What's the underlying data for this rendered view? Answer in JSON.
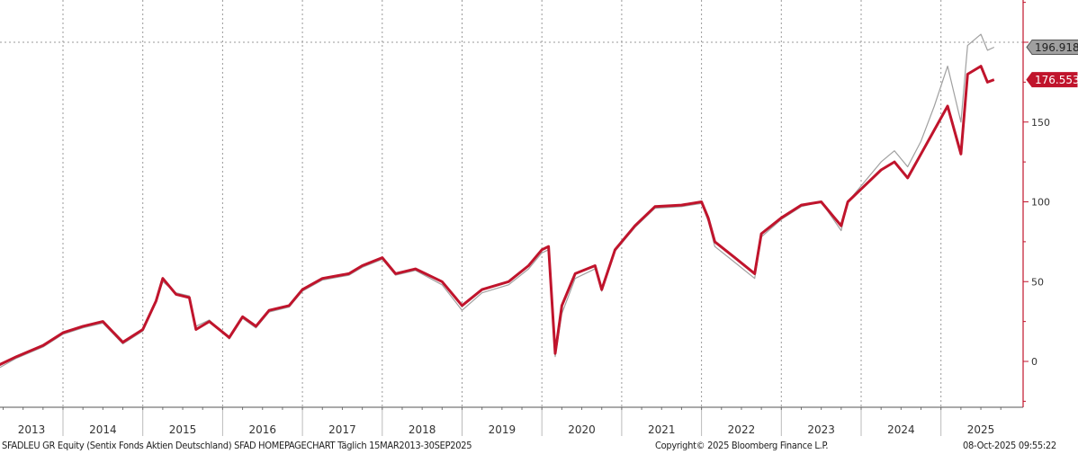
{
  "chart_data": {
    "type": "line",
    "title": "",
    "xlabel": "",
    "ylabel": "",
    "x_range": [
      "2013-03",
      "2025-12"
    ],
    "ylim": [
      -28,
      226
    ],
    "y_ticks": [
      0,
      50,
      100,
      150,
      200
    ],
    "x_tick_labels": [
      "2013",
      "2014",
      "2015",
      "2016",
      "2017",
      "2018",
      "2019",
      "2020",
      "2021",
      "2022",
      "2023",
      "2024",
      "2025"
    ],
    "grid": "vertical dotted at year boundaries, horizontal dotted at 200",
    "axis_position": "right",
    "colors": {
      "primary": "#c0142c",
      "benchmark": "#a0a0a0",
      "axis": "#c0142c"
    },
    "series": [
      {
        "key": "primary",
        "last_value_label": "176.553",
        "points": [
          [
            "2013-03",
            -3
          ],
          [
            "2013-06",
            3
          ],
          [
            "2013-10",
            10
          ],
          [
            "2014-01",
            18
          ],
          [
            "2014-04",
            22
          ],
          [
            "2014-07",
            25
          ],
          [
            "2014-10",
            12
          ],
          [
            "2015-01",
            20
          ],
          [
            "2015-03",
            38
          ],
          [
            "2015-04",
            52
          ],
          [
            "2015-06",
            42
          ],
          [
            "2015-08",
            40
          ],
          [
            "2015-09",
            20
          ],
          [
            "2015-11",
            25
          ],
          [
            "2016-02",
            15
          ],
          [
            "2016-04",
            28
          ],
          [
            "2016-06",
            22
          ],
          [
            "2016-08",
            32
          ],
          [
            "2016-11",
            35
          ],
          [
            "2017-01",
            45
          ],
          [
            "2017-04",
            52
          ],
          [
            "2017-08",
            55
          ],
          [
            "2017-10",
            60
          ],
          [
            "2018-01",
            65
          ],
          [
            "2018-03",
            55
          ],
          [
            "2018-06",
            58
          ],
          [
            "2018-10",
            50
          ],
          [
            "2019-01",
            35
          ],
          [
            "2019-04",
            45
          ],
          [
            "2019-08",
            50
          ],
          [
            "2019-11",
            60
          ],
          [
            "2020-01",
            70
          ],
          [
            "2020-02",
            72
          ],
          [
            "2020-03",
            5
          ],
          [
            "2020-04",
            35
          ],
          [
            "2020-06",
            55
          ],
          [
            "2020-09",
            60
          ],
          [
            "2020-10",
            45
          ],
          [
            "2020-12",
            70
          ],
          [
            "2021-03",
            85
          ],
          [
            "2021-06",
            97
          ],
          [
            "2021-10",
            98
          ],
          [
            "2022-01",
            100
          ],
          [
            "2022-02",
            90
          ],
          [
            "2022-03",
            75
          ],
          [
            "2022-06",
            65
          ],
          [
            "2022-09",
            55
          ],
          [
            "2022-10",
            80
          ],
          [
            "2023-01",
            90
          ],
          [
            "2023-04",
            98
          ],
          [
            "2023-07",
            100
          ],
          [
            "2023-09",
            90
          ],
          [
            "2023-10",
            85
          ],
          [
            "2023-11",
            100
          ],
          [
            "2024-01",
            108
          ],
          [
            "2024-04",
            120
          ],
          [
            "2024-06",
            125
          ],
          [
            "2024-08",
            115
          ],
          [
            "2024-10",
            130
          ],
          [
            "2024-12",
            145
          ],
          [
            "2025-02",
            160
          ],
          [
            "2025-04",
            130
          ],
          [
            "2025-05",
            180
          ],
          [
            "2025-07",
            185
          ],
          [
            "2025-08",
            175
          ],
          [
            "2025-09",
            176.553
          ]
        ]
      },
      {
        "key": "benchmark",
        "last_value_label": "196.9186",
        "points": [
          [
            "2013-03",
            -5
          ],
          [
            "2013-06",
            2
          ],
          [
            "2013-10",
            9
          ],
          [
            "2014-01",
            17
          ],
          [
            "2014-04",
            21
          ],
          [
            "2014-07",
            24
          ],
          [
            "2014-10",
            11
          ],
          [
            "2015-01",
            19
          ],
          [
            "2015-03",
            37
          ],
          [
            "2015-04",
            50
          ],
          [
            "2015-06",
            43
          ],
          [
            "2015-08",
            41
          ],
          [
            "2015-09",
            22
          ],
          [
            "2015-11",
            26
          ],
          [
            "2016-02",
            14
          ],
          [
            "2016-04",
            27
          ],
          [
            "2016-06",
            21
          ],
          [
            "2016-08",
            31
          ],
          [
            "2016-11",
            34
          ],
          [
            "2017-01",
            44
          ],
          [
            "2017-04",
            51
          ],
          [
            "2017-08",
            54
          ],
          [
            "2017-10",
            59
          ],
          [
            "2018-01",
            64
          ],
          [
            "2018-03",
            54
          ],
          [
            "2018-06",
            57
          ],
          [
            "2018-10",
            48
          ],
          [
            "2019-01",
            32
          ],
          [
            "2019-04",
            43
          ],
          [
            "2019-08",
            48
          ],
          [
            "2019-11",
            58
          ],
          [
            "2020-01",
            68
          ],
          [
            "2020-02",
            70
          ],
          [
            "2020-03",
            3
          ],
          [
            "2020-04",
            30
          ],
          [
            "2020-06",
            52
          ],
          [
            "2020-09",
            58
          ],
          [
            "2020-10",
            44
          ],
          [
            "2020-12",
            69
          ],
          [
            "2021-03",
            84
          ],
          [
            "2021-06",
            96
          ],
          [
            "2021-10",
            97
          ],
          [
            "2022-01",
            99
          ],
          [
            "2022-02",
            88
          ],
          [
            "2022-03",
            72
          ],
          [
            "2022-06",
            62
          ],
          [
            "2022-09",
            52
          ],
          [
            "2022-10",
            78
          ],
          [
            "2023-01",
            89
          ],
          [
            "2023-04",
            97
          ],
          [
            "2023-07",
            100
          ],
          [
            "2023-09",
            88
          ],
          [
            "2023-10",
            82
          ],
          [
            "2023-11",
            100
          ],
          [
            "2024-01",
            110
          ],
          [
            "2024-04",
            125
          ],
          [
            "2024-06",
            132
          ],
          [
            "2024-08",
            122
          ],
          [
            "2024-10",
            138
          ],
          [
            "2024-12",
            160
          ],
          [
            "2025-02",
            185
          ],
          [
            "2025-04",
            150
          ],
          [
            "2025-05",
            198
          ],
          [
            "2025-07",
            205
          ],
          [
            "2025-08",
            195
          ],
          [
            "2025-09",
            196.9186
          ]
        ]
      }
    ]
  },
  "footer": {
    "description": "SFADLEU GR Equity (Sentix Fonds Aktien Deutschland) SFAD HOMEPAGECHART Täglich 15MAR2013-30SEP2025",
    "copyright": "Copyright© 2025 Bloomberg Finance L.P.",
    "timestamp": "08-Oct-2025 09:55:22"
  }
}
